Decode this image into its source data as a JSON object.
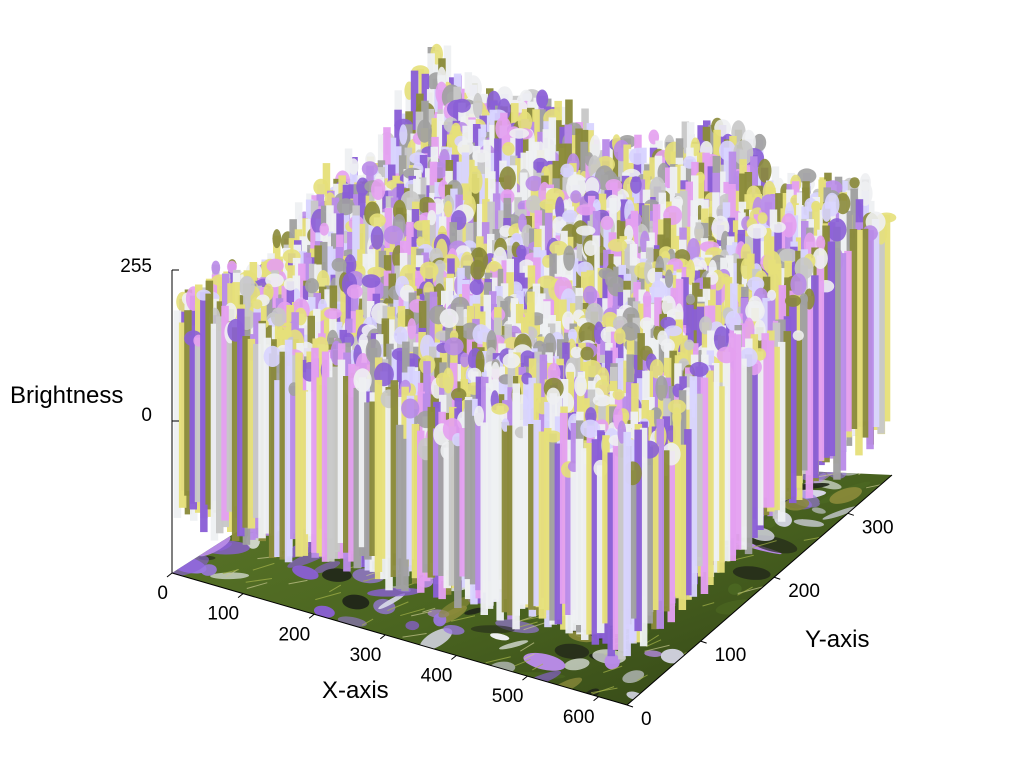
{
  "chart_data": {
    "type": "surface",
    "xlabel": "X-axis",
    "ylabel": "Y-axis",
    "zlabel": "Brightness",
    "x_ticks": [
      0,
      100,
      200,
      300,
      400,
      500,
      600
    ],
    "y_ticks": [
      0,
      100,
      200,
      300
    ],
    "z_ticks": [
      0,
      255
    ],
    "xlim": [
      0,
      640
    ],
    "ylim": [
      0,
      360
    ],
    "zlim": [
      0,
      255
    ],
    "grid": false,
    "base_projection": "photo of purple and white crocus flowers in grass",
    "colors": {
      "purple": "#8a5fd6",
      "violet": "#b98be8",
      "pink": "#e4a0f0",
      "white": "#eef0f2",
      "yellow": "#e6e07a",
      "olive": "#8a8a3a",
      "grass": "#4d6a22",
      "dark": "#22281a"
    }
  }
}
